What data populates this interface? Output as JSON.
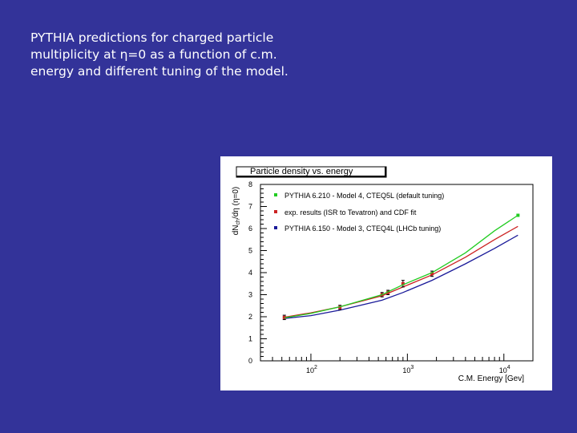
{
  "caption": {
    "lines": [
      "PYTHIA predictions for charged particle",
      "multiplicity at η=0 as a function of c.m.",
      "energy and different tuning of the model."
    ]
  },
  "colors": {
    "background": "#333399",
    "green": "#22cc22",
    "red": "#cc2222",
    "blue": "#1a1a99"
  },
  "chart_data": {
    "type": "line",
    "title": "Particle density vs. energy",
    "xlabel": "C.M. Energy [Gev]",
    "ylabel": "dN_ch/dη (η=0)",
    "xscale": "log",
    "xlim": [
      30,
      20000
    ],
    "ylim": [
      0,
      8
    ],
    "yticks": [
      "0",
      "1",
      "2",
      "3",
      "4",
      "5",
      "6",
      "7",
      "8"
    ],
    "xticks": [
      {
        "value": 100,
        "base": "10",
        "exp": "2"
      },
      {
        "value": 1000,
        "base": "10",
        "exp": "3"
      },
      {
        "value": 10000,
        "base": "10",
        "exp": "4"
      }
    ],
    "legend_position": "top-left",
    "series": [
      {
        "name": "PYTHIA 6.210 - Model 4, CTEQ5L (default tuning)",
        "color": "#22cc22",
        "kind": "curve",
        "points": [
          [
            53,
            1.95
          ],
          [
            100,
            2.15
          ],
          [
            200,
            2.45
          ],
          [
            546,
            3.0
          ],
          [
            900,
            3.45
          ],
          [
            1800,
            4.0
          ],
          [
            4000,
            4.9
          ],
          [
            8000,
            5.9
          ],
          [
            14000,
            6.6
          ]
        ],
        "end_marker": [
          14000,
          6.6
        ]
      },
      {
        "name": "exp. results (ISR to Tevatron) and CDF fit",
        "color": "#cc2222",
        "kind": "points+fit",
        "fit": [
          [
            53,
            1.98
          ],
          [
            100,
            2.18
          ],
          [
            200,
            2.45
          ],
          [
            546,
            2.95
          ],
          [
            900,
            3.35
          ],
          [
            1800,
            3.9
          ],
          [
            4000,
            4.7
          ],
          [
            8000,
            5.5
          ],
          [
            14000,
            6.1
          ]
        ],
        "points": [
          [
            53,
            1.97,
            0.1
          ],
          [
            200,
            2.42,
            0.1
          ],
          [
            546,
            3.0,
            0.1
          ],
          [
            630,
            3.1,
            0.1
          ],
          [
            900,
            3.5,
            0.15
          ],
          [
            1800,
            3.95,
            0.12
          ]
        ]
      },
      {
        "name": "PYTHIA 6.150 - Model 3, CTEQ4L (LHCb tuning)",
        "color": "#1a1a99",
        "kind": "curve",
        "points": [
          [
            53,
            1.92
          ],
          [
            100,
            2.05
          ],
          [
            200,
            2.3
          ],
          [
            546,
            2.75
          ],
          [
            900,
            3.1
          ],
          [
            1800,
            3.65
          ],
          [
            4000,
            4.4
          ],
          [
            8000,
            5.1
          ],
          [
            14000,
            5.7
          ]
        ]
      }
    ]
  }
}
